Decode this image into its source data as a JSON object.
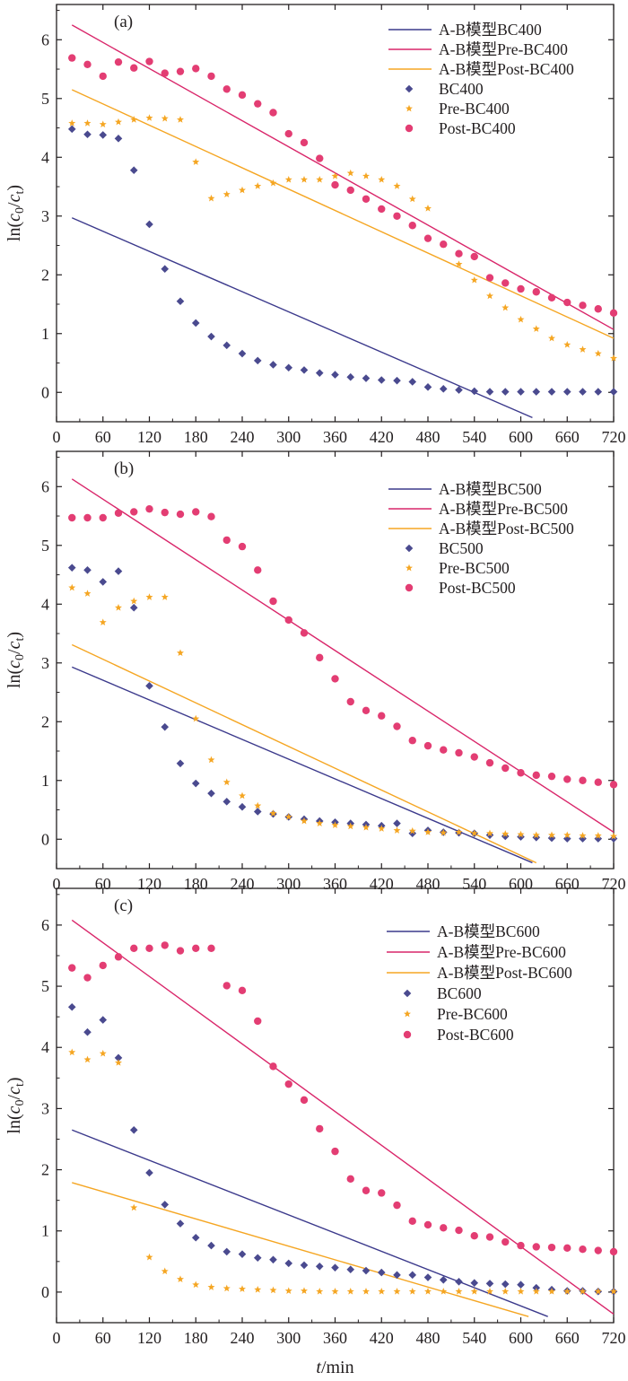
{
  "chart_data": [
    {
      "type": "scatter",
      "panel_label": "(a)",
      "xlim": [
        0,
        720
      ],
      "ylim": [
        -0.5,
        6.6
      ],
      "x_ticks": [
        0,
        60,
        120,
        180,
        240,
        300,
        360,
        420,
        480,
        540,
        600,
        660,
        720
      ],
      "y_ticks": [
        0,
        1,
        2,
        3,
        4,
        5,
        6
      ],
      "legend_position": "top-right",
      "lines": [
        {
          "name": "A-B模型BC400",
          "color": "#3c3a8c",
          "x": [
            20,
            615
          ],
          "y": [
            2.97,
            -0.43
          ]
        },
        {
          "name": "A-B模型Pre-BC400",
          "color": "#d9266a",
          "x": [
            20,
            720
          ],
          "y": [
            6.25,
            1.07
          ]
        },
        {
          "name": "A-B模型Post-BC400",
          "color": "#f5a623",
          "x": [
            20,
            720
          ],
          "y": [
            5.15,
            0.92
          ]
        }
      ],
      "series": [
        {
          "name": "BC400",
          "marker": "diamond",
          "color": "#4a4a8f",
          "x": [
            20,
            40,
            60,
            80,
            100,
            120,
            140,
            160,
            180,
            200,
            220,
            240,
            260,
            280,
            300,
            320,
            340,
            360,
            380,
            400,
            420,
            440,
            460,
            480,
            500,
            520,
            540,
            560,
            580,
            600,
            620,
            640,
            660,
            680,
            700,
            720
          ],
          "y": [
            4.48,
            4.39,
            4.38,
            4.32,
            3.78,
            2.86,
            2.1,
            1.55,
            1.18,
            0.95,
            0.8,
            0.66,
            0.54,
            0.47,
            0.42,
            0.38,
            0.33,
            0.3,
            0.26,
            0.24,
            0.21,
            0.2,
            0.18,
            0.09,
            0.06,
            0.04,
            0.02,
            0.01,
            0.01,
            0.01,
            0.01,
            0.01,
            0.01,
            0.01,
            0.01,
            0.01
          ]
        },
        {
          "name": "Pre-BC400",
          "marker": "star",
          "color": "#f5a623",
          "x": [
            20,
            40,
            60,
            80,
            100,
            120,
            140,
            160,
            180,
            200,
            220,
            240,
            260,
            280,
            300,
            320,
            340,
            360,
            380,
            400,
            420,
            440,
            460,
            480,
            500,
            520,
            540,
            560,
            580,
            600,
            620,
            640,
            660,
            680,
            700,
            720
          ],
          "y": [
            4.58,
            4.58,
            4.56,
            4.6,
            4.64,
            4.67,
            4.66,
            4.64,
            3.92,
            3.3,
            3.37,
            3.44,
            3.51,
            3.56,
            3.62,
            3.62,
            3.62,
            3.68,
            3.73,
            3.68,
            3.62,
            3.51,
            3.29,
            3.13,
            2.51,
            2.18,
            1.91,
            1.64,
            1.44,
            1.24,
            1.08,
            0.92,
            0.81,
            0.73,
            0.66,
            0.58
          ]
        },
        {
          "name": "Post-BC400",
          "marker": "circle",
          "color": "#e33d73",
          "x": [
            20,
            40,
            60,
            80,
            100,
            120,
            140,
            160,
            180,
            200,
            220,
            240,
            260,
            280,
            300,
            320,
            340,
            360,
            380,
            400,
            420,
            440,
            460,
            480,
            500,
            520,
            540,
            560,
            580,
            600,
            620,
            640,
            660,
            680,
            700,
            720
          ],
          "y": [
            5.69,
            5.58,
            5.38,
            5.62,
            5.52,
            5.63,
            5.43,
            5.46,
            5.51,
            5.38,
            5.16,
            5.06,
            4.91,
            4.76,
            4.4,
            4.25,
            3.98,
            3.53,
            3.44,
            3.29,
            3.12,
            3.0,
            2.84,
            2.62,
            2.52,
            2.36,
            2.31,
            1.95,
            1.86,
            1.76,
            1.71,
            1.61,
            1.53,
            1.48,
            1.42,
            1.35
          ]
        }
      ]
    },
    {
      "type": "scatter",
      "panel_label": "(b)",
      "xlim": [
        0,
        720
      ],
      "ylim": [
        -0.5,
        6.6
      ],
      "x_ticks": [
        0,
        60,
        120,
        180,
        240,
        300,
        360,
        420,
        480,
        540,
        600,
        660,
        720
      ],
      "y_ticks": [
        0,
        1,
        2,
        3,
        4,
        5,
        6
      ],
      "legend_position": "top-right",
      "lines": [
        {
          "name": "A-B模型BC500",
          "color": "#3c3a8c",
          "x": [
            20,
            615
          ],
          "y": [
            2.93,
            -0.4
          ]
        },
        {
          "name": "A-B模型Pre-BC500",
          "color": "#d9266a",
          "x": [
            20,
            720
          ],
          "y": [
            6.13,
            0.12
          ]
        },
        {
          "name": "A-B模型Post-BC500",
          "color": "#f5a623",
          "x": [
            20,
            620
          ],
          "y": [
            3.31,
            -0.4
          ]
        }
      ],
      "series": [
        {
          "name": "BC500",
          "marker": "diamond",
          "color": "#4a4a8f",
          "x": [
            20,
            40,
            60,
            80,
            100,
            120,
            140,
            160,
            180,
            200,
            220,
            240,
            260,
            280,
            300,
            320,
            340,
            360,
            380,
            400,
            420,
            440,
            460,
            480,
            500,
            520,
            540,
            560,
            580,
            600,
            620,
            640,
            660,
            680,
            700,
            720
          ],
          "y": [
            4.62,
            4.58,
            4.38,
            4.56,
            3.94,
            2.61,
            1.91,
            1.29,
            0.95,
            0.78,
            0.64,
            0.55,
            0.47,
            0.43,
            0.38,
            0.34,
            0.31,
            0.29,
            0.27,
            0.25,
            0.23,
            0.27,
            0.1,
            0.15,
            0.12,
            0.11,
            0.1,
            0.07,
            0.05,
            0.04,
            0.03,
            0.02,
            0.01,
            0.01,
            0.01,
            0.01
          ]
        },
        {
          "name": "Pre-BC500",
          "marker": "star",
          "color": "#f5a623",
          "x": [
            20,
            40,
            60,
            80,
            100,
            120,
            140,
            160,
            180,
            200,
            220,
            240,
            260,
            280,
            300,
            320,
            340,
            360,
            380,
            400,
            420,
            440,
            460,
            480,
            500,
            520,
            540,
            560,
            580,
            600,
            620,
            640,
            660,
            680,
            700,
            720
          ],
          "y": [
            4.28,
            4.18,
            3.69,
            3.94,
            4.05,
            4.12,
            4.12,
            3.17,
            2.05,
            1.35,
            0.97,
            0.74,
            0.57,
            0.44,
            0.38,
            0.31,
            0.27,
            0.24,
            0.22,
            0.2,
            0.18,
            0.15,
            0.14,
            0.12,
            0.11,
            0.12,
            0.1,
            0.1,
            0.09,
            0.08,
            0.07,
            0.07,
            0.07,
            0.06,
            0.06,
            0.05
          ]
        },
        {
          "name": "Post-BC500",
          "marker": "circle",
          "color": "#e33d73",
          "x": [
            20,
            40,
            60,
            80,
            100,
            120,
            140,
            160,
            180,
            200,
            220,
            240,
            260,
            280,
            300,
            320,
            340,
            360,
            380,
            400,
            420,
            440,
            460,
            480,
            500,
            520,
            540,
            560,
            580,
            600,
            620,
            640,
            660,
            680,
            700,
            720
          ],
          "y": [
            5.47,
            5.47,
            5.47,
            5.55,
            5.57,
            5.62,
            5.56,
            5.53,
            5.57,
            5.49,
            5.09,
            4.98,
            4.58,
            4.05,
            3.73,
            3.51,
            3.09,
            2.73,
            2.34,
            2.19,
            2.1,
            1.92,
            1.68,
            1.59,
            1.52,
            1.47,
            1.4,
            1.3,
            1.21,
            1.13,
            1.09,
            1.07,
            1.02,
            1.0,
            0.97,
            0.93
          ]
        }
      ]
    },
    {
      "type": "scatter",
      "panel_label": "(c)",
      "xlim": [
        0,
        720
      ],
      "ylim": [
        -0.5,
        6.6
      ],
      "x_ticks": [
        0,
        60,
        120,
        180,
        240,
        300,
        360,
        420,
        480,
        540,
        600,
        660,
        720
      ],
      "y_ticks": [
        0,
        1,
        2,
        3,
        4,
        5,
        6
      ],
      "x_axis_title_italic": "t",
      "x_axis_title_rest": "/min",
      "legend_position": "top-right",
      "lines": [
        {
          "name": "A-B模型BC600",
          "color": "#3c3a8c",
          "x": [
            20,
            635
          ],
          "y": [
            2.65,
            -0.4
          ]
        },
        {
          "name": "A-B模型Pre-BC600",
          "color": "#d9266a",
          "x": [
            20,
            720
          ],
          "y": [
            6.08,
            -0.36
          ]
        },
        {
          "name": "A-B模型Post-BC600",
          "color": "#f5a623",
          "x": [
            20,
            610
          ],
          "y": [
            1.79,
            -0.4
          ]
        }
      ],
      "series": [
        {
          "name": "BC600",
          "marker": "diamond",
          "color": "#4a4a8f",
          "x": [
            20,
            40,
            60,
            80,
            100,
            120,
            140,
            160,
            180,
            200,
            220,
            240,
            260,
            280,
            300,
            320,
            340,
            360,
            380,
            400,
            420,
            440,
            460,
            480,
            500,
            520,
            540,
            560,
            580,
            600,
            620,
            640,
            660,
            680,
            700,
            720
          ],
          "y": [
            4.66,
            4.25,
            4.45,
            3.83,
            2.65,
            1.95,
            1.43,
            1.12,
            0.89,
            0.76,
            0.66,
            0.62,
            0.56,
            0.53,
            0.47,
            0.44,
            0.42,
            0.4,
            0.37,
            0.35,
            0.32,
            0.28,
            0.28,
            0.24,
            0.2,
            0.17,
            0.15,
            0.14,
            0.13,
            0.12,
            0.07,
            0.04,
            0.02,
            0.02,
            0.01,
            0.01
          ]
        },
        {
          "name": "Pre-BC600",
          "marker": "star",
          "color": "#f5a623",
          "x": [
            20,
            40,
            60,
            80,
            100,
            120,
            140,
            160,
            180,
            200,
            220,
            240,
            260,
            280,
            300,
            320,
            340,
            360,
            380,
            400,
            420,
            440,
            460,
            480,
            500,
            520,
            540,
            560,
            580,
            600,
            620,
            640,
            660,
            680,
            700,
            720
          ],
          "y": [
            3.92,
            3.8,
            3.9,
            3.75,
            1.38,
            0.57,
            0.34,
            0.21,
            0.12,
            0.08,
            0.06,
            0.05,
            0.04,
            0.03,
            0.02,
            0.02,
            0.01,
            0.01,
            0.01,
            0.01,
            0.01,
            0.01,
            0.01,
            0.01,
            0.01,
            0.01,
            0.01,
            0.01,
            0.01,
            0.01,
            0.01,
            0.01,
            0.01,
            0.01,
            0.01,
            0.01
          ]
        },
        {
          "name": "Post-BC600",
          "marker": "circle",
          "color": "#e33d73",
          "x": [
            20,
            40,
            60,
            80,
            100,
            120,
            140,
            160,
            180,
            200,
            220,
            240,
            260,
            280,
            300,
            320,
            340,
            360,
            380,
            400,
            420,
            440,
            460,
            480,
            500,
            520,
            540,
            560,
            580,
            600,
            620,
            640,
            660,
            680,
            700,
            720
          ],
          "y": [
            5.3,
            5.14,
            5.34,
            5.48,
            5.62,
            5.62,
            5.67,
            5.58,
            5.62,
            5.62,
            5.01,
            4.93,
            4.43,
            3.69,
            3.4,
            3.14,
            2.67,
            2.3,
            1.85,
            1.66,
            1.62,
            1.42,
            1.16,
            1.1,
            1.05,
            1.01,
            0.92,
            0.9,
            0.82,
            0.76,
            0.74,
            0.73,
            0.72,
            0.7,
            0.68,
            0.66
          ]
        }
      ]
    }
  ]
}
